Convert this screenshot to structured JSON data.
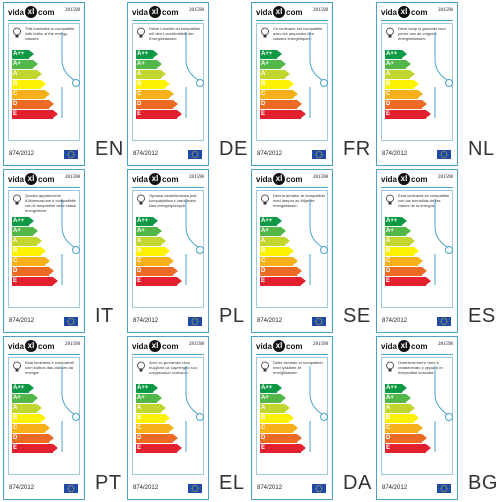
{
  "brand": {
    "name_left": "vida",
    "name_right": "com",
    "mark": "xl"
  },
  "product_code": "281598",
  "regulation": "874/2012",
  "classes": [
    "A++",
    "A+",
    "A",
    "B",
    "C",
    "D",
    "E"
  ],
  "colors": {
    "border": "#4aa3c8",
    "class_colors": [
      "#0e9a45",
      "#52b748",
      "#c3d52f",
      "#fff200",
      "#f7b019",
      "#ec6a23",
      "#e3202d"
    ],
    "eu_flag": "#1f4aa8"
  },
  "icons": {
    "bulb": "light-bulb-icon",
    "lamp": "pendant-lamp-icon",
    "eu": "eu-flag-icon"
  },
  "labels": [
    {
      "lang": "EN",
      "text": "This luminaire is compatible with bulbs of the energy classes:"
    },
    {
      "lang": "DE",
      "text": "Diese Leuchte ist kompatibel mit den Leuchtmitteln der Energieklassen:"
    },
    {
      "lang": "FR",
      "text": "Ce luminaire est compatible avec les ampoules des classes énergétiques:"
    },
    {
      "lang": "NL",
      "text": "Deze lamp is geschikt voor peren van de volgend energieklassen:"
    },
    {
      "lang": "IT",
      "text": "Questo apparecchio d'illuminazione è compatibile con le lampadine delle classi energetiche:"
    },
    {
      "lang": "PL",
      "text": "Oprawa oświetleniowa jest kompatybilna z żarówkami klas energetycznych:"
    },
    {
      "lang": "SE",
      "text": "Denna armatur är kompatibel med lampor av följande energiklasser:"
    },
    {
      "lang": "ES",
      "text": "Esta luminaria es compatible con las bombillas de las clases de la energía:"
    },
    {
      "lang": "PT",
      "text": "Esta luminária é compatível com bulbos das classes da energia:"
    },
    {
      "lang": "EL",
      "text": "Αυτό το φωτιστικό είναι συμβατό με λαμπτήρες των ενεργειακών κλάσεων:"
    },
    {
      "lang": "DA",
      "text": "Dette armatur er kompatibel med lyskilder af energiklasser:"
    },
    {
      "lang": "BG",
      "text": "Осветителното тяло е съвместимо с крушки от енергийни класове:"
    }
  ]
}
